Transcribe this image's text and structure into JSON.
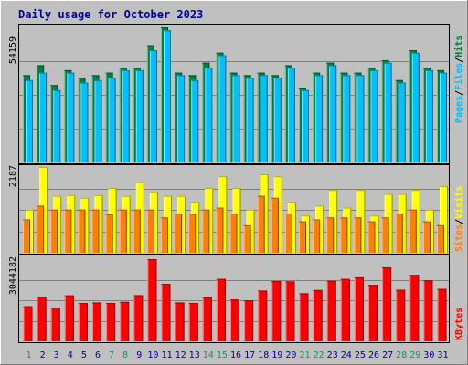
{
  "title": "Daily usage for October 2023",
  "colors": {
    "hits": "#008040",
    "files": "#00c0ff",
    "pages": "#00c0ff",
    "visits": "#ffff00",
    "sites": "#ff8000",
    "kbytes": "#ff0000",
    "weekday": "#0000a0",
    "weekend": "#00a060"
  },
  "labels": {
    "top_max": "54159",
    "mid_max": "2187",
    "bot_max": "3044182",
    "pages": "Pages",
    "files": "Files",
    "hits": "Hits",
    "sites": "Sites",
    "visits": "Visits",
    "kbytes": "KBytes",
    "sep": "/"
  },
  "chart_data": [
    {
      "type": "bar",
      "series": [
        {
          "name": "Hits",
          "values": [
            35000,
            39000,
            31000,
            37000,
            34000,
            35000,
            36000,
            38000,
            38000,
            47000,
            54159,
            36000,
            35000,
            40000,
            44000,
            36000,
            35000,
            36000,
            35000,
            39000,
            30000,
            36000,
            40000,
            36000,
            36000,
            38000,
            41000,
            33000,
            45000,
            38000,
            37000
          ]
        },
        {
          "name": "Files",
          "values": [
            33000,
            36000,
            29000,
            36000,
            32000,
            33000,
            34000,
            37000,
            37000,
            45000,
            53000,
            35000,
            33000,
            38000,
            43000,
            35000,
            34000,
            35000,
            34000,
            38000,
            29000,
            35000,
            39000,
            35000,
            35000,
            37000,
            40000,
            32000,
            44000,
            37000,
            36000
          ]
        }
      ],
      "categories": [
        "1",
        "2",
        "3",
        "4",
        "5",
        "6",
        "7",
        "8",
        "9",
        "10",
        "11",
        "12",
        "13",
        "14",
        "15",
        "16",
        "17",
        "18",
        "19",
        "20",
        "21",
        "22",
        "23",
        "24",
        "25",
        "26",
        "27",
        "28",
        "29",
        "30",
        "31"
      ],
      "ylim": [
        0,
        54159
      ]
    },
    {
      "type": "bar",
      "series": [
        {
          "name": "Visits",
          "values": [
            1100,
            2187,
            1450,
            1470,
            1400,
            1470,
            1650,
            1450,
            1800,
            1550,
            1450,
            1450,
            1300,
            1650,
            1950,
            1650,
            1100,
            2000,
            1950,
            1300,
            950,
            1200,
            1600,
            1150,
            1600,
            950,
            1500,
            1500,
            1600,
            1100,
            1700
          ]
        },
        {
          "name": "Sites",
          "values": [
            850,
            1200,
            1100,
            1100,
            1100,
            1100,
            980,
            1100,
            1100,
            1100,
            900,
            1000,
            1000,
            1100,
            1150,
            1000,
            700,
            1450,
            1400,
            1000,
            800,
            850,
            900,
            900,
            900,
            800,
            900,
            1000,
            1100,
            800,
            700
          ]
        }
      ],
      "categories": [
        "1",
        "2",
        "3",
        "4",
        "5",
        "6",
        "7",
        "8",
        "9",
        "10",
        "11",
        "12",
        "13",
        "14",
        "15",
        "16",
        "17",
        "18",
        "19",
        "20",
        "21",
        "22",
        "23",
        "24",
        "25",
        "26",
        "27",
        "28",
        "29",
        "30",
        "31"
      ],
      "ylim": [
        0,
        2187
      ]
    },
    {
      "type": "bar",
      "series": [
        {
          "name": "KBytes",
          "values": [
            1300000,
            1650000,
            1250000,
            1700000,
            1420000,
            1440000,
            1420000,
            1460000,
            1710000,
            3044182,
            2130000,
            1440000,
            1420000,
            1630000,
            2310000,
            1550000,
            1520000,
            1880000,
            2230000,
            2220000,
            1780000,
            1900000,
            2240000,
            2310000,
            2370000,
            2090000,
            2740000,
            1910000,
            2460000,
            2260000,
            1940000
          ]
        }
      ],
      "categories": [
        "1",
        "2",
        "3",
        "4",
        "5",
        "6",
        "7",
        "8",
        "9",
        "10",
        "11",
        "12",
        "13",
        "14",
        "15",
        "16",
        "17",
        "18",
        "19",
        "20",
        "21",
        "22",
        "23",
        "24",
        "25",
        "26",
        "27",
        "28",
        "29",
        "30",
        "31"
      ],
      "ylim": [
        0,
        3044182
      ]
    }
  ],
  "weekend_days": [
    1,
    7,
    8,
    14,
    15,
    21,
    22,
    28,
    29
  ]
}
